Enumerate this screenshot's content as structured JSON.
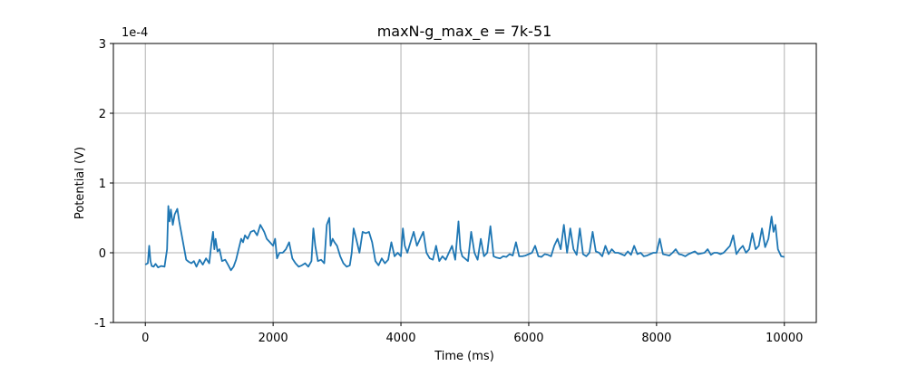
{
  "chart_data": {
    "type": "line",
    "title": "maxN-g_max_e = 7k-51",
    "xlabel": "Time (ms)",
    "ylabel": "Potential (V)",
    "y_scale_label": "1e-4",
    "xlim": [
      -500,
      10500
    ],
    "ylim": [
      -1,
      3
    ],
    "x_ticks": [
      0,
      2000,
      4000,
      6000,
      8000,
      10000
    ],
    "x_tick_labels": [
      "0",
      "2000",
      "4000",
      "6000",
      "8000",
      "10000"
    ],
    "y_ticks": [
      -1,
      0,
      1,
      2,
      3
    ],
    "y_tick_labels": [
      "-1",
      "0",
      "1",
      "2",
      "3"
    ],
    "grid": true,
    "line_color": "#1f77b4",
    "series": [
      {
        "x": [
          0,
          40,
          60,
          80,
          100,
          130,
          160,
          200,
          250,
          300,
          340,
          360,
          380,
          400,
          430,
          460,
          500,
          530,
          560,
          600,
          640,
          680,
          720,
          760,
          800,
          850,
          900,
          950,
          1000,
          1030,
          1060,
          1080,
          1100,
          1130,
          1160,
          1200,
          1250,
          1300,
          1340,
          1380,
          1420,
          1460,
          1500,
          1530,
          1560,
          1600,
          1650,
          1700,
          1750,
          1800,
          1830,
          1860,
          1900,
          1950,
          2000,
          2030,
          2060,
          2100,
          2150,
          2200,
          2250,
          2300,
          2350,
          2400,
          2450,
          2500,
          2550,
          2600,
          2630,
          2660,
          2700,
          2750,
          2800,
          2840,
          2880,
          2900,
          2930,
          2960,
          3000,
          3050,
          3100,
          3150,
          3200,
          3230,
          3260,
          3300,
          3350,
          3400,
          3450,
          3500,
          3550,
          3600,
          3650,
          3700,
          3750,
          3800,
          3850,
          3900,
          3950,
          4000,
          4030,
          4060,
          4100,
          4150,
          4200,
          4250,
          4300,
          4350,
          4400,
          4450,
          4500,
          4550,
          4600,
          4650,
          4700,
          4750,
          4800,
          4850,
          4900,
          4930,
          4960,
          5000,
          5050,
          5100,
          5150,
          5200,
          5250,
          5300,
          5350,
          5400,
          5450,
          5500,
          5550,
          5600,
          5650,
          5700,
          5750,
          5800,
          5850,
          5900,
          5950,
          6000,
          6050,
          6100,
          6150,
          6200,
          6250,
          6300,
          6350,
          6400,
          6450,
          6500,
          6550,
          6600,
          6650,
          6700,
          6750,
          6800,
          6850,
          6900,
          6950,
          7000,
          7050,
          7100,
          7150,
          7200,
          7250,
          7300,
          7350,
          7400,
          7450,
          7500,
          7550,
          7600,
          7650,
          7700,
          7750,
          7800,
          7850,
          7900,
          7950,
          8000,
          8050,
          8100,
          8150,
          8200,
          8250,
          8300,
          8350,
          8400,
          8450,
          8500,
          8550,
          8600,
          8650,
          8700,
          8750,
          8800,
          8850,
          8900,
          8950,
          9000,
          9050,
          9100,
          9150,
          9200,
          9250,
          9300,
          9350,
          9400,
          9450,
          9500,
          9550,
          9600,
          9650,
          9700,
          9750,
          9800,
          9830,
          9860,
          9900,
          9950,
          10000
        ],
        "y": [
          -0.17,
          -0.15,
          0.1,
          -0.12,
          -0.19,
          -0.2,
          -0.16,
          -0.21,
          -0.19,
          -0.2,
          0.05,
          0.67,
          0.45,
          0.62,
          0.4,
          0.55,
          0.63,
          0.45,
          0.3,
          0.1,
          -0.1,
          -0.13,
          -0.15,
          -0.12,
          -0.2,
          -0.1,
          -0.17,
          -0.08,
          -0.15,
          0.1,
          0.3,
          0.05,
          0.2,
          0.02,
          0.05,
          -0.12,
          -0.1,
          -0.18,
          -0.25,
          -0.2,
          -0.1,
          0.05,
          0.2,
          0.15,
          0.25,
          0.2,
          0.3,
          0.32,
          0.25,
          0.4,
          0.35,
          0.3,
          0.2,
          0.15,
          0.1,
          0.2,
          -0.08,
          0.0,
          0.0,
          0.05,
          0.15,
          -0.08,
          -0.15,
          -0.2,
          -0.18,
          -0.15,
          -0.2,
          -0.12,
          0.35,
          0.1,
          -0.12,
          -0.1,
          -0.15,
          0.4,
          0.5,
          0.1,
          0.2,
          0.15,
          0.1,
          -0.05,
          -0.15,
          -0.2,
          -0.18,
          0.0,
          0.35,
          0.2,
          0.0,
          0.3,
          0.28,
          0.3,
          0.15,
          -0.12,
          -0.18,
          -0.08,
          -0.15,
          -0.1,
          0.15,
          -0.05,
          0.0,
          -0.05,
          0.35,
          0.1,
          0.0,
          0.15,
          0.3,
          0.1,
          0.2,
          0.3,
          0.0,
          -0.08,
          -0.1,
          0.1,
          -0.12,
          -0.05,
          -0.1,
          0.0,
          0.1,
          -0.1,
          0.45,
          0.05,
          -0.05,
          -0.08,
          -0.12,
          0.3,
          0.0,
          -0.1,
          0.2,
          -0.05,
          0.0,
          0.38,
          -0.05,
          -0.07,
          -0.08,
          -0.05,
          -0.06,
          -0.02,
          -0.04,
          0.15,
          -0.05,
          -0.05,
          -0.04,
          -0.02,
          0.0,
          0.1,
          -0.05,
          -0.06,
          -0.02,
          -0.03,
          -0.05,
          0.1,
          0.2,
          0.05,
          0.4,
          0.0,
          0.35,
          0.05,
          -0.03,
          0.35,
          -0.02,
          -0.05,
          0.0,
          0.3,
          0.02,
          0.0,
          -0.05,
          0.1,
          -0.02,
          0.05,
          0.0,
          0.0,
          -0.02,
          -0.04,
          0.02,
          -0.03,
          0.1,
          -0.02,
          0.0,
          -0.05,
          -0.04,
          -0.02,
          0.0,
          0.0,
          0.2,
          -0.02,
          -0.03,
          -0.04,
          0.0,
          0.05,
          -0.02,
          -0.03,
          -0.05,
          -0.02,
          0.0,
          0.02,
          -0.02,
          -0.01,
          0.0,
          0.05,
          -0.03,
          0.0,
          0.0,
          -0.02,
          0.0,
          0.05,
          0.1,
          0.25,
          -0.02,
          0.05,
          0.1,
          0.0,
          0.05,
          0.28,
          0.05,
          0.1,
          0.35,
          0.08,
          0.2,
          0.52,
          0.3,
          0.4,
          0.05,
          -0.05,
          -0.06
        ]
      }
    ]
  }
}
